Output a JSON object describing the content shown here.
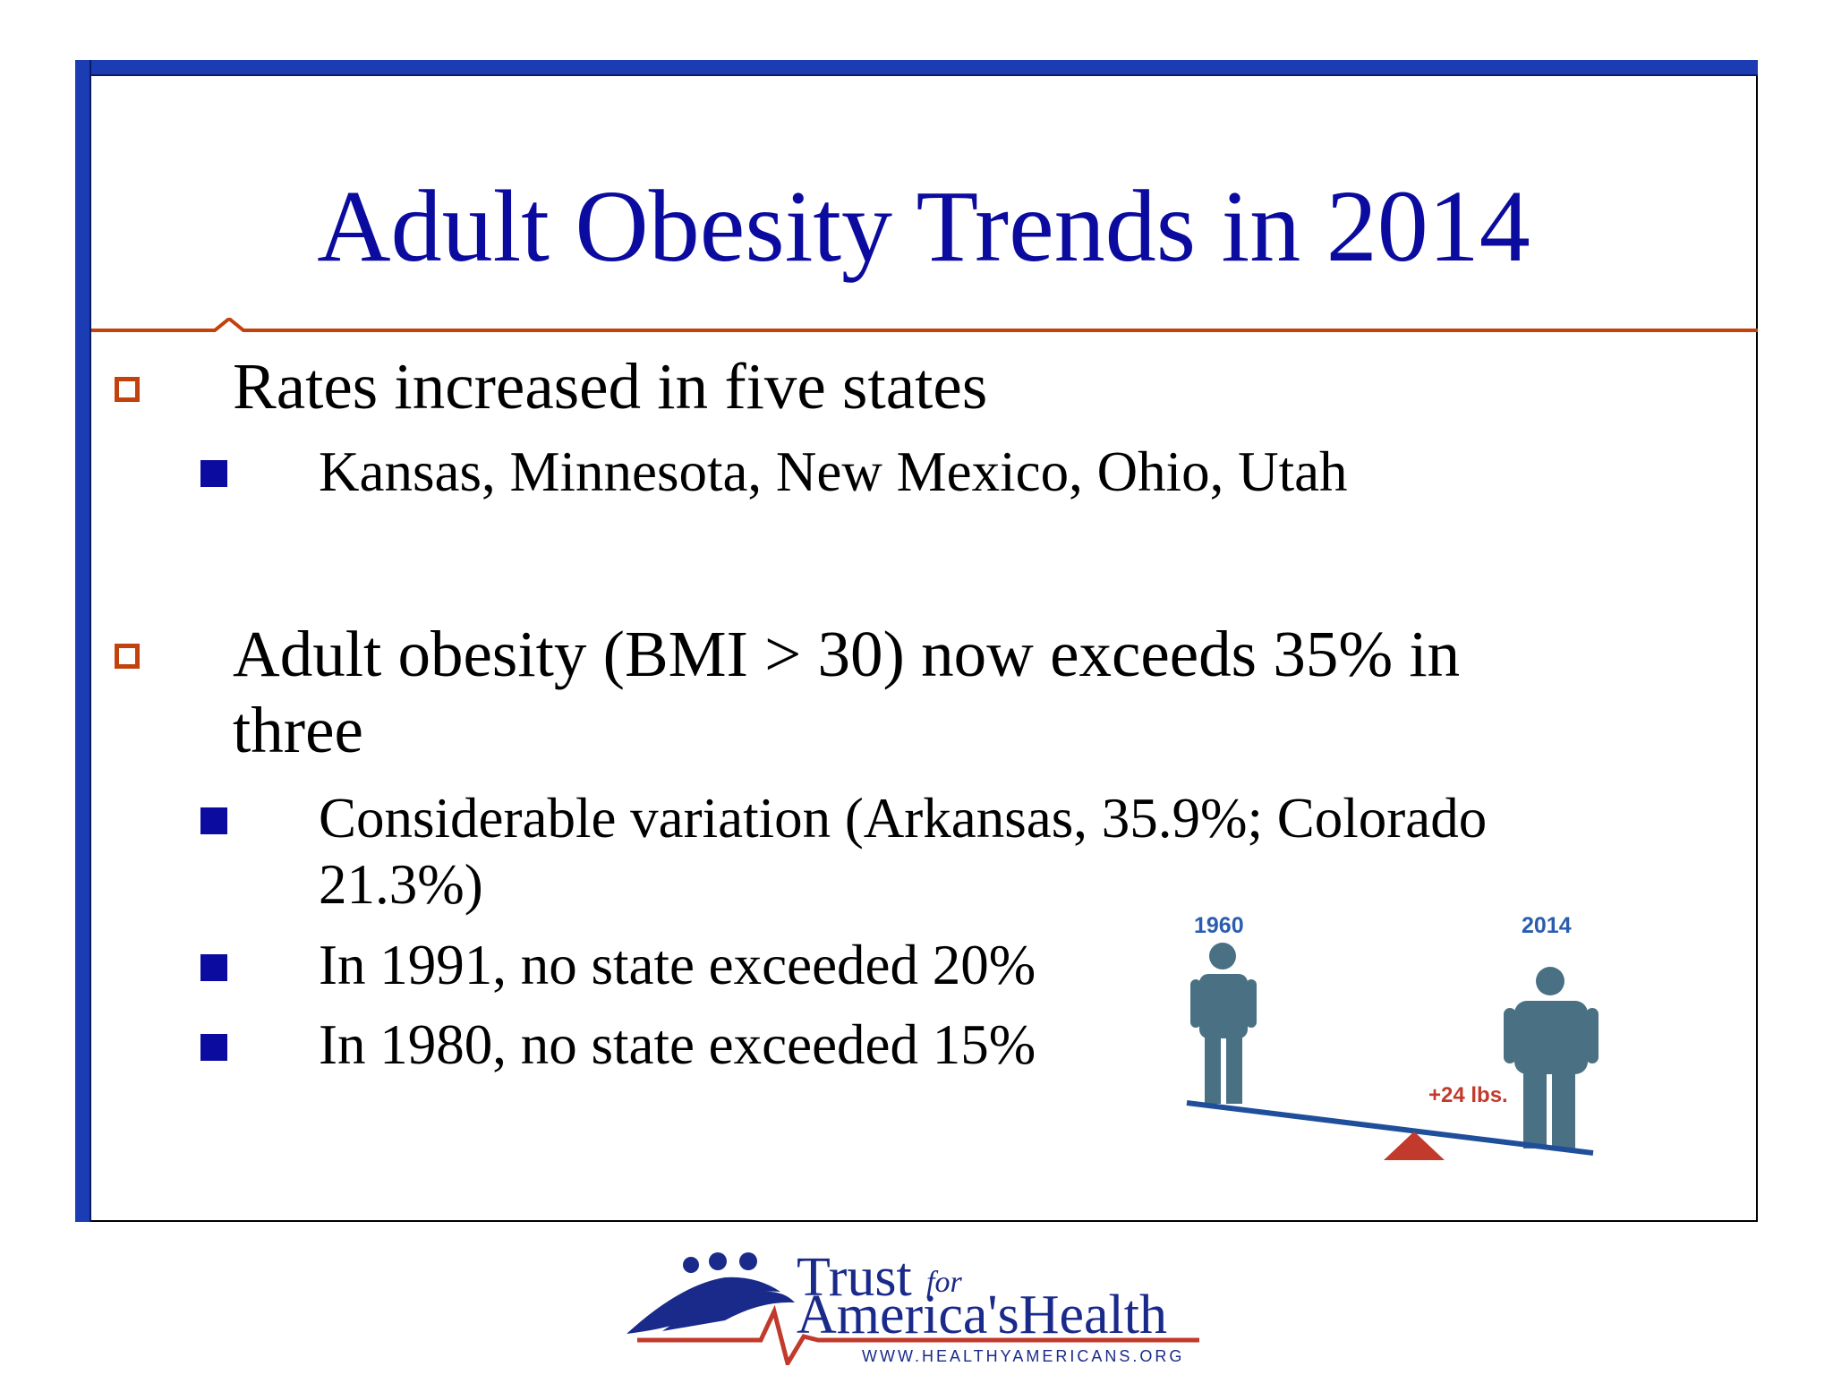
{
  "slide": {
    "title": "Adult Obesity Trends in 2014",
    "bullets": [
      {
        "text": "Rates increased in five states",
        "subitems": [
          "Kansas, Minnesota, New Mexico, Ohio, Utah"
        ]
      },
      {
        "text_line1": "Adult obesity (BMI > 30) now exceeds 35% in",
        "text_line2": "three",
        "subitems": [
          {
            "line1": "Considerable variation (Arkansas, 35.9%; Colorado",
            "line2": "21.3%)"
          },
          "In 1991, no state exceeded 20%",
          "In 1980, no state exceeded 15%"
        ]
      }
    ]
  },
  "illustration": {
    "year_left": "1960",
    "year_right": "2014",
    "weight_gain": "+24 lbs.",
    "figure_color": "#4a7084",
    "beam_color": "#1f4f9a",
    "fulcrum_color": "#c23a2b"
  },
  "logo": {
    "trust": "Trust",
    "for": "for",
    "americas": "America's",
    "health": "Health",
    "url": "WWW.HEALTHYAMERICANS.ORG"
  },
  "colors": {
    "title": "#0b0ba0",
    "frame_bar": "#1c3cb4",
    "rule": "#c2410c",
    "l1_bullet": "#c2410c",
    "l2_bullet": "#0b0ba0"
  }
}
